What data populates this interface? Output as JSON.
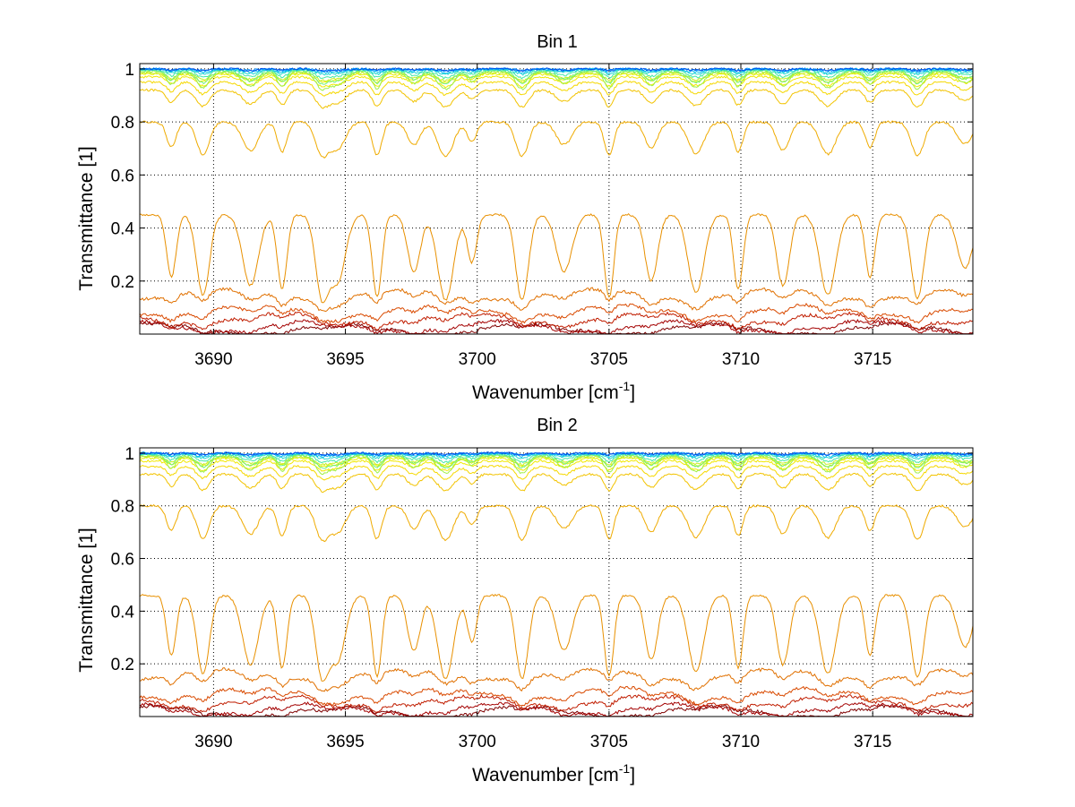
{
  "figure": {
    "background": "#ffffff"
  },
  "chart_data": [
    {
      "type": "line",
      "title": "Bin 1",
      "xlabel": "Wavenumber [cm",
      "xlabel_sup": "-1",
      "xlabel_end": "]",
      "ylabel": "Transmittance [1]",
      "xlim": [
        3687.2,
        3718.8
      ],
      "ylim": [
        0.0,
        1.02
      ],
      "xticks": [
        3690,
        3695,
        3700,
        3705,
        3710,
        3715
      ],
      "xtick_labels": [
        "3690",
        "3695",
        "3700",
        "3705",
        "3710",
        "3715"
      ],
      "yticks": [
        0.2,
        0.4,
        0.6,
        0.8,
        1.0
      ],
      "ytick_labels": [
        "0.2",
        "0.4",
        "0.6",
        "0.8",
        "1"
      ],
      "grid": true,
      "grid_style": "dotted",
      "series_style": "many curves colored by optical depth (jet colormap: dark red lowest, through orange and yellow, to cyan/blue near 1)",
      "colors": [
        "#7f0000",
        "#a30000",
        "#c01d00",
        "#d94a00",
        "#e07000",
        "#e89000",
        "#efab00",
        "#f2c300",
        "#f5d800",
        "#f2e800",
        "#e8f000",
        "#c6f020",
        "#9ef045",
        "#6ff07a",
        "#44e8a8",
        "#22d8d0",
        "#10c0f0",
        "#0090ff",
        "#0050e8"
      ],
      "absorption_lines_cm-1": [
        3688.4,
        3689.6,
        3691.4,
        3692.6,
        3694.1,
        3694.7,
        3696.2,
        3697.6,
        3698.8,
        3699.8,
        3701.7,
        3703.3,
        3705.0,
        3706.6,
        3708.3,
        3709.9,
        3711.6,
        3713.3,
        3714.9,
        3716.7,
        3718.5
      ],
      "approximate_curve_baselines": [
        0.02,
        0.03,
        0.06,
        0.09,
        0.15,
        0.45,
        0.8,
        0.92,
        0.95,
        0.97,
        0.98,
        0.985,
        0.99,
        0.993,
        0.996,
        0.998,
        0.999,
        1.0,
        1.0
      ]
    },
    {
      "type": "line",
      "title": "Bin 2",
      "xlabel": "Wavenumber [cm",
      "xlabel_sup": "-1",
      "xlabel_end": "]",
      "ylabel": "Transmittance [1]",
      "xlim": [
        3687.2,
        3718.8
      ],
      "ylim": [
        0.0,
        1.02
      ],
      "xticks": [
        3690,
        3695,
        3700,
        3705,
        3710,
        3715
      ],
      "xtick_labels": [
        "3690",
        "3695",
        "3700",
        "3705",
        "3710",
        "3715"
      ],
      "yticks": [
        0.2,
        0.4,
        0.6,
        0.8,
        1.0
      ],
      "ytick_labels": [
        "0.2",
        "0.4",
        "0.6",
        "0.8",
        "1"
      ],
      "grid": true,
      "grid_style": "dotted",
      "series_style": "many curves colored by optical depth (jet colormap: dark red lowest, through orange and yellow, to cyan/blue near 1)",
      "colors": [
        "#7f0000",
        "#a30000",
        "#c01d00",
        "#d94a00",
        "#e07000",
        "#e89000",
        "#efab00",
        "#f2c300",
        "#f5d800",
        "#f2e800",
        "#e8f000",
        "#c6f020",
        "#9ef045",
        "#6ff07a",
        "#44e8a8",
        "#22d8d0",
        "#10c0f0",
        "#0090ff",
        "#0050e8"
      ],
      "absorption_lines_cm-1": [
        3688.4,
        3689.6,
        3691.4,
        3692.6,
        3694.1,
        3694.7,
        3696.2,
        3697.6,
        3698.8,
        3699.8,
        3701.7,
        3703.3,
        3705.0,
        3706.6,
        3708.3,
        3709.9,
        3711.6,
        3713.3,
        3714.9,
        3716.7,
        3718.5
      ],
      "approximate_curve_baselines": [
        0.02,
        0.03,
        0.06,
        0.09,
        0.16,
        0.46,
        0.8,
        0.92,
        0.95,
        0.97,
        0.98,
        0.985,
        0.99,
        0.993,
        0.996,
        0.998,
        0.999,
        1.0,
        1.0
      ]
    }
  ]
}
